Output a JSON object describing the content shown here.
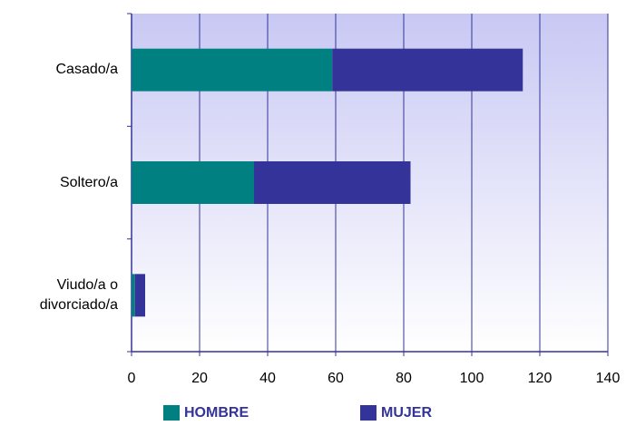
{
  "chart_data": {
    "type": "bar",
    "orientation": "horizontal",
    "stacked": true,
    "categories": [
      "Casado/a",
      "Soltero/a",
      "Viudo/a o divorciado/a"
    ],
    "series": [
      {
        "name": "HOMBRE",
        "color": "#008080",
        "values": [
          59,
          36,
          1
        ]
      },
      {
        "name": "MUJER",
        "color": "#333399",
        "values": [
          56,
          46,
          3
        ]
      }
    ],
    "xlim": [
      0,
      140
    ],
    "xticks": [
      0,
      20,
      40,
      60,
      80,
      100,
      120,
      140
    ],
    "grid": true,
    "legend": "bottom"
  }
}
